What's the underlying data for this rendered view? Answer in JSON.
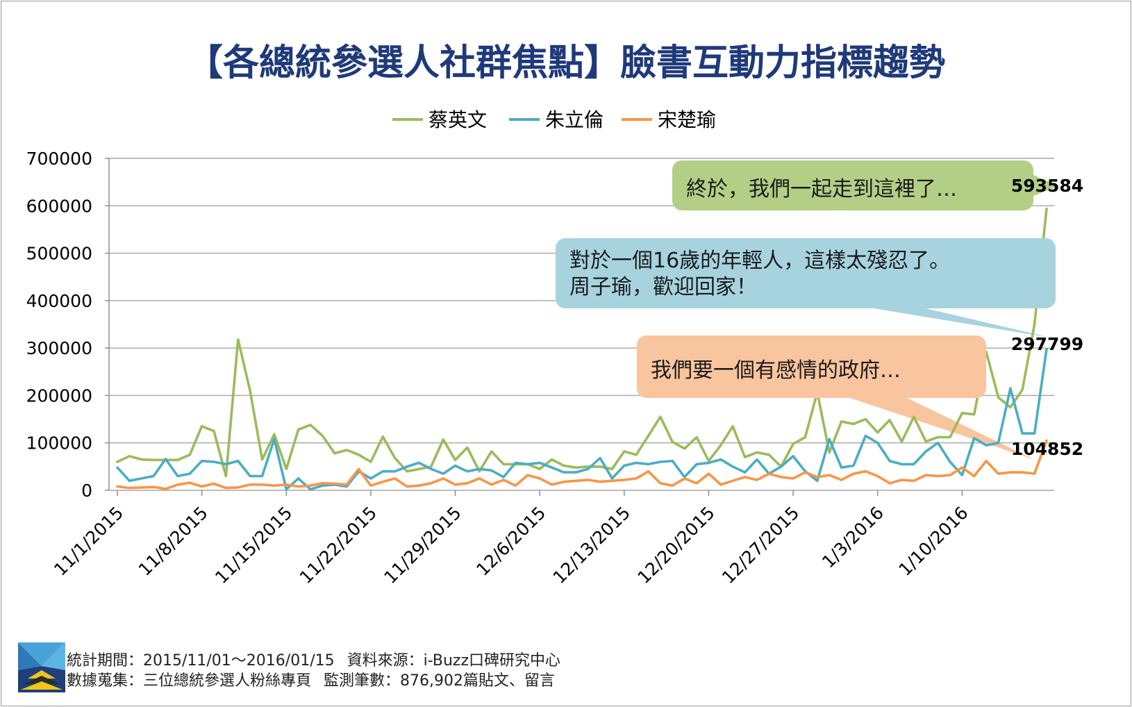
{
  "title": "【各總統參選人社群焦點】臉書互動力指標趨勢",
  "footer": {
    "period_label": "統計期間：2015/11/01～2016/01/15",
    "source_label": "資料來源：i-Buzz口碑研究中心",
    "collection_label": "數據蒐集：三位總統參選人粉絲專頁",
    "count_label": "監測筆數：876,902篇貼文、留言"
  },
  "callouts": [
    {
      "text_lines": [
        "終於，我們一起走到這裡了…"
      ],
      "color": "#b3cf86",
      "series": "蔡英文"
    },
    {
      "text_lines": [
        "對於一個16歲的年輕人，這樣太殘忍了。",
        "周子瑜，歡迎回家！"
      ],
      "color": "#a7d3df",
      "series": "朱立倫"
    },
    {
      "text_lines": [
        "我們要一個有感情的政府…"
      ],
      "color": "#f9c59f",
      "series": "宋楚瑜"
    }
  ],
  "chart_data": {
    "type": "line",
    "title": "【各總統參選人社群焦點】臉書互動力指標趨勢",
    "xlabel": "",
    "ylabel": "",
    "ylim": [
      0,
      700000
    ],
    "yticks": [
      "0",
      "100000",
      "200000",
      "300000",
      "400000",
      "500000",
      "600000",
      "700000"
    ],
    "x_tick_labels": [
      "11/1/2015",
      "11/8/2015",
      "11/15/2015",
      "11/22/2015",
      "11/29/2015",
      "12/6/2015",
      "12/13/2015",
      "12/20/2015",
      "12/27/2015",
      "1/3/2016",
      "1/10/2016"
    ],
    "x_start": "2015-11-01",
    "x_end": "2016-01-15",
    "grid": true,
    "legend_position": "top",
    "series": [
      {
        "name": "蔡英文",
        "color": "#9bbb59",
        "values": [
          60000,
          72000,
          65000,
          64000,
          64000,
          64000,
          75000,
          135000,
          125000,
          30000,
          318000,
          210000,
          65000,
          118000,
          45000,
          128000,
          138000,
          115000,
          78000,
          85000,
          75000,
          60000,
          113000,
          68000,
          40000,
          45000,
          50000,
          107000,
          64000,
          90000,
          40000,
          82000,
          55000,
          55000,
          55000,
          45000,
          65000,
          52000,
          48000,
          50000,
          50000,
          45000,
          82000,
          75000,
          115000,
          155000,
          102000,
          88000,
          112000,
          62000,
          95000,
          135000,
          70000,
          80000,
          75000,
          50000,
          98000,
          112000,
          207000,
          80000,
          145000,
          140000,
          150000,
          122000,
          148000,
          103000,
          155000,
          103000,
          112000,
          112000,
          163000,
          160000,
          292000,
          196000,
          175000,
          212000,
          350000,
          593584
        ],
        "end_label": "593584"
      },
      {
        "name": "朱立倫",
        "color": "#4bacc6",
        "values": [
          48000,
          20000,
          25000,
          30000,
          66000,
          30000,
          35000,
          62000,
          60000,
          55000,
          62000,
          30000,
          30000,
          108000,
          2000,
          25000,
          2000,
          10000,
          12000,
          8000,
          40000,
          25000,
          40000,
          40000,
          50000,
          58000,
          45000,
          35000,
          52000,
          40000,
          45000,
          42000,
          28000,
          58000,
          55000,
          58000,
          48000,
          38000,
          38000,
          45000,
          68000,
          25000,
          52000,
          58000,
          55000,
          60000,
          62000,
          28000,
          55000,
          58000,
          65000,
          50000,
          38000,
          65000,
          35000,
          50000,
          72000,
          40000,
          20000,
          108000,
          48000,
          52000,
          115000,
          100000,
          62000,
          55000,
          55000,
          82000,
          100000,
          60000,
          32000,
          110000,
          95000,
          100000,
          215000,
          120000,
          120000,
          297799
        ],
        "end_label": "297799"
      },
      {
        "name": "宋楚瑜",
        "color": "#f79646",
        "values": [
          8000,
          5000,
          6000,
          7000,
          3000,
          12000,
          16000,
          8000,
          14000,
          5000,
          6000,
          12000,
          12000,
          10000,
          12000,
          8000,
          10000,
          15000,
          14000,
          12000,
          45000,
          10000,
          18000,
          25000,
          8000,
          10000,
          15000,
          25000,
          12000,
          15000,
          25000,
          12000,
          22000,
          10000,
          32000,
          25000,
          12000,
          18000,
          20000,
          22000,
          18000,
          20000,
          22000,
          25000,
          40000,
          15000,
          10000,
          25000,
          15000,
          35000,
          12000,
          20000,
          28000,
          22000,
          35000,
          28000,
          25000,
          38000,
          28000,
          32000,
          22000,
          35000,
          40000,
          30000,
          15000,
          22000,
          20000,
          32000,
          30000,
          32000,
          48000,
          30000,
          62000,
          35000,
          38000,
          38000,
          35000,
          104852
        ],
        "end_label": "104852"
      }
    ]
  }
}
